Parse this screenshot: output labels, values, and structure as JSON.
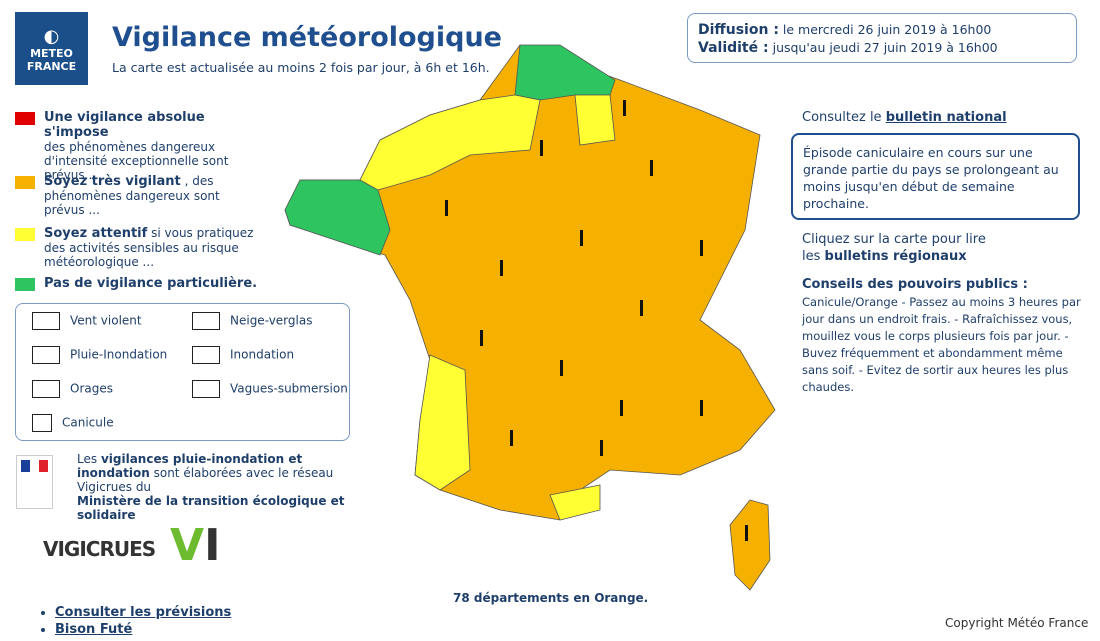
{
  "header": {
    "logo_lines": [
      "METEO",
      "FRANCE"
    ],
    "title": "Vigilance météorologique",
    "subtitle": "La carte est actualisée au moins 2 fois par jour, à 6h et 16h."
  },
  "validity": {
    "diffusion_label": "Diffusion :",
    "diffusion_text": "le mercredi 26 juin 2019 à 16h00",
    "validite_label": "Validité :",
    "validite_text": "jusqu'au jeudi 27 juin 2019 à 16h00"
  },
  "legend": {
    "levels": [
      {
        "title": "Une vigilance absolue s'impose",
        "text": "des phénomènes dangereux d'intensité exceptionnelle sont prévus..."
      },
      {
        "title": "Soyez très vigilant",
        "text": ", des phénomènes dangereux sont prévus ..."
      },
      {
        "title": "Soyez attentif",
        "text": "si vous pratiquez des activités sensibles au risque météorologique ..."
      },
      {
        "title": "Pas de vigilance particulière."
      }
    ],
    "phenomena": [
      "Vent violent",
      "Neige-verglas",
      "Pluie-Inondation",
      "Inondation",
      "Orages",
      "Vagues-submersion",
      "Canicule"
    ]
  },
  "vigicrues": {
    "parts": [
      "Les",
      "vigilances pluie-inondation et inondation",
      "sont élaborées avec le réseau Vigicrues du",
      "Ministère de la transition écologique et solidaire"
    ],
    "logo": "VIGICRUES"
  },
  "sidebar": {
    "national_prefix": "Consultez le",
    "national_link": "bulletin national",
    "alert": "Épisode caniculaire en cours sur une grande partie du pays se prolongeant au moins jusqu'en début de semaine prochaine.",
    "regional_text": "Cliquez sur la carte pour lire",
    "regional_prefix": "les",
    "regional_link": "bulletins régionaux",
    "conseils_title": "Conseils des pouvoirs publics :",
    "conseils_text": "Canicule/Orange - Passez au moins 3 heures par jour dans un endroit frais. - Rafraîchissez vous, mouillez vous le corps plusieurs fois par jour. - Buvez fréquemment et abondamment même sans soif. - Evitez de sortir aux heures les plus chaudes."
  },
  "map_caption": "78 départements en Orange.",
  "links": [
    "Consulter les prévisions",
    "Bison Futé"
  ],
  "copyright": "Copyright Météo France"
}
